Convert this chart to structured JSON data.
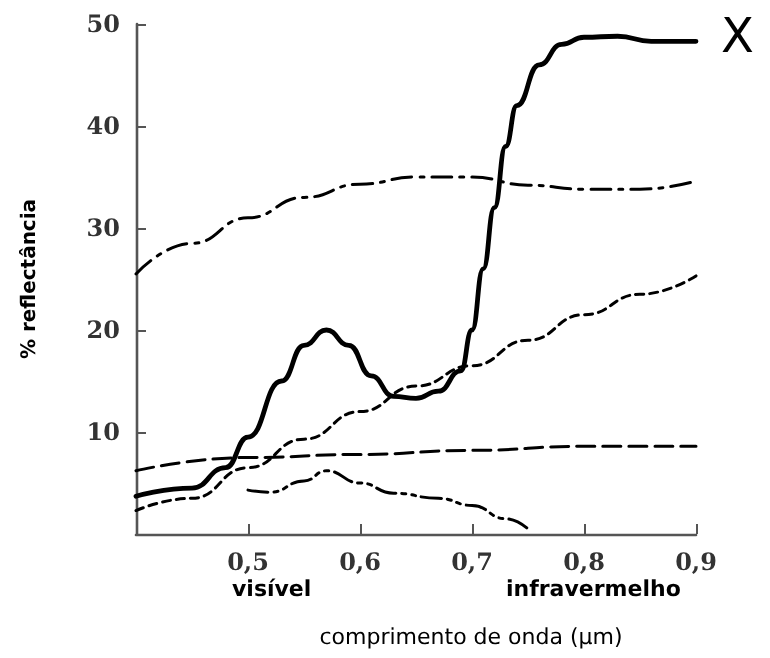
{
  "chart_data": {
    "type": "line",
    "xlabel": "comprimento de onda (μm)",
    "ylabel": "% reflectância",
    "annotations": [
      "X",
      "visível",
      "infravermelho"
    ],
    "xlim": [
      0.4,
      0.9
    ],
    "xticks": [
      {
        "value": 0.5,
        "label": "0,5"
      },
      {
        "value": 0.6,
        "label": "0,6"
      },
      {
        "value": 0.7,
        "label": "0,7"
      },
      {
        "value": 0.8,
        "label": "0,8"
      },
      {
        "value": 0.9,
        "label": "0,9"
      }
    ],
    "ylim": [
      0,
      50
    ],
    "yticks": [
      10,
      20,
      30,
      40,
      50
    ],
    "grid": false,
    "marker": "none",
    "series": [
      {
        "color": "#000000",
        "line_style": "solid",
        "x": [
          0.4,
          0.45,
          0.48,
          0.5,
          0.53,
          0.55,
          0.57,
          0.59,
          0.61,
          0.63,
          0.65,
          0.67,
          0.69,
          0.7,
          0.71,
          0.72,
          0.73,
          0.74,
          0.76,
          0.78,
          0.8,
          0.83,
          0.86,
          0.9
        ],
        "values": [
          3.7,
          4.5,
          6.5,
          9.5,
          15,
          18.5,
          20,
          18.5,
          15.5,
          13.5,
          13.3,
          14,
          16,
          20,
          26,
          32,
          38,
          42,
          46,
          48,
          48.7,
          48.8,
          48.3,
          48.3
        ]
      },
      {
        "color": "#000000",
        "line_style": "dashdot",
        "x": [
          0.4,
          0.45,
          0.5,
          0.55,
          0.6,
          0.65,
          0.7,
          0.75,
          0.8,
          0.85,
          0.9
        ],
        "values": [
          25.5,
          28.5,
          31,
          33,
          34.3,
          35,
          35,
          34.2,
          33.8,
          33.8,
          34.6
        ]
      },
      {
        "color": "#000000",
        "line_style": "dotted",
        "x": [
          0.4,
          0.45,
          0.5,
          0.55,
          0.6,
          0.65,
          0.7,
          0.75,
          0.8,
          0.85,
          0.9
        ],
        "values": [
          2.3,
          3.5,
          6.5,
          9.3,
          12,
          14.5,
          16.5,
          19,
          21.5,
          23.5,
          25.3
        ]
      },
      {
        "color": "#000000",
        "line_style": "dashed",
        "x": [
          0.4,
          0.5,
          0.6,
          0.7,
          0.8,
          0.9
        ],
        "values": [
          6.2,
          7.5,
          7.8,
          8.2,
          8.6,
          8.6
        ]
      },
      {
        "color": "#000000",
        "line_style": "dashdotdot",
        "x": [
          0.5,
          0.52,
          0.55,
          0.57,
          0.6,
          0.63,
          0.67,
          0.7,
          0.73,
          0.75
        ],
        "values": [
          4.3,
          4.1,
          5.2,
          6.2,
          5,
          4,
          3.5,
          2.8,
          1.5,
          0.5
        ]
      }
    ]
  }
}
